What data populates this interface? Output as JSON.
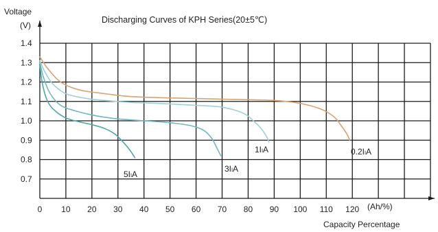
{
  "chart_data": {
    "type": "line",
    "title": "Discharging Curves of KPH Series(20±5℃)",
    "ylabel": "Voltage",
    "yunit": "(V)",
    "xlabel": "Capacity Percentage",
    "xunit": "(Ah/%)",
    "xlim": [
      0,
      150
    ],
    "ylim": [
      0.6,
      1.4
    ],
    "xticks": [
      "0",
      "10",
      "20",
      "30",
      "40",
      "50",
      "60",
      "70",
      "80",
      "90",
      "100",
      "110",
      "120"
    ],
    "yticks": [
      "1.4",
      "1.3",
      "1.2",
      "1.1",
      "1.0",
      "0.9",
      "0.8",
      "0.7"
    ],
    "grid": true,
    "series": [
      {
        "name": "0.2IₗA",
        "color": "#d9a270",
        "x": [
          0,
          3,
          8,
          15,
          25,
          35,
          50,
          70,
          90,
          100,
          108,
          113,
          116,
          118,
          119
        ],
        "y": [
          1.33,
          1.27,
          1.2,
          1.16,
          1.14,
          1.125,
          1.118,
          1.112,
          1.105,
          1.09,
          1.06,
          1.02,
          0.97,
          0.93,
          0.9
        ]
      },
      {
        "name": "1IₗA",
        "color": "#9ed0dc",
        "x": [
          0,
          2,
          5,
          10,
          18,
          25,
          35,
          45,
          60,
          70,
          78,
          82,
          85,
          87,
          88
        ],
        "y": [
          1.31,
          1.25,
          1.19,
          1.14,
          1.115,
          1.105,
          1.095,
          1.09,
          1.08,
          1.07,
          1.04,
          1.0,
          0.96,
          0.92,
          0.89
        ]
      },
      {
        "name": "3IₗA",
        "color": "#6fb8c0",
        "x": [
          0,
          1.5,
          4,
          8,
          14,
          22,
          30,
          40,
          50,
          58,
          63,
          66,
          68,
          69.5
        ],
        "y": [
          1.3,
          1.22,
          1.14,
          1.08,
          1.05,
          1.025,
          1.01,
          1.0,
          0.99,
          0.975,
          0.95,
          0.91,
          0.86,
          0.82
        ]
      },
      {
        "name": "5IₗA",
        "color": "#4fa6a8",
        "x": [
          0,
          1,
          3,
          6,
          10,
          15,
          20,
          25,
          29,
          32,
          34.5,
          36.5
        ],
        "y": [
          1.29,
          1.19,
          1.1,
          1.05,
          1.015,
          0.995,
          0.98,
          0.96,
          0.93,
          0.89,
          0.85,
          0.81
        ]
      }
    ]
  }
}
